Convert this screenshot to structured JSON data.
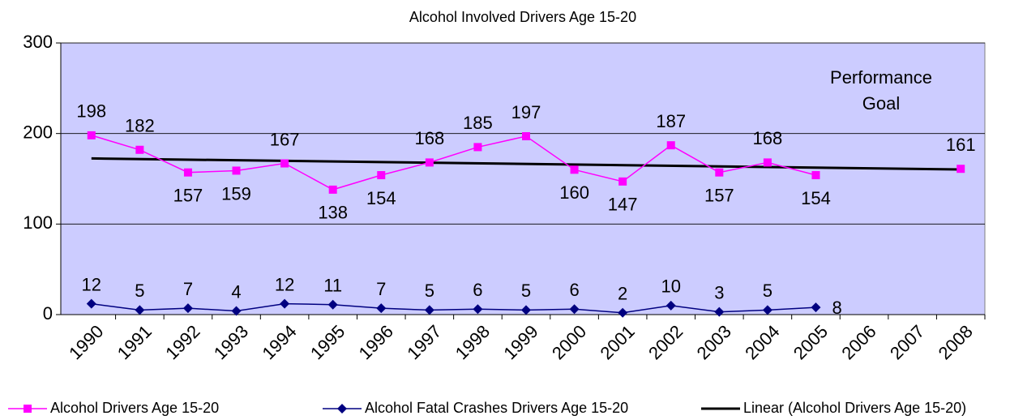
{
  "chart_data": {
    "type": "line",
    "title": "Alcohol Involved Drivers Age 15-20",
    "annotation": [
      "Performance",
      "Goal"
    ],
    "categories": [
      "1990",
      "1991",
      "1992",
      "1993",
      "1994",
      "1995",
      "1996",
      "1997",
      "1998",
      "1999",
      "2000",
      "2001",
      "2002",
      "2003",
      "2004",
      "2005",
      "2006",
      "2007",
      "2008"
    ],
    "series": [
      {
        "name": "Alcohol Drivers Age   15-20",
        "color": "#ff00ff",
        "marker": "square",
        "values": [
          198,
          182,
          157,
          159,
          167,
          138,
          154,
          168,
          185,
          197,
          160,
          147,
          187,
          157,
          168,
          154,
          null,
          null,
          161
        ],
        "trendline": {
          "type": "linear",
          "name": "Linear (Alcohol Drivers Age   15-20)",
          "color": "#000000"
        }
      },
      {
        "name": "Alcohol Fatal Crashes Drivers Age 15-20",
        "color": "#000080",
        "marker": "diamond",
        "values": [
          12,
          5,
          7,
          4,
          12,
          11,
          7,
          5,
          6,
          5,
          6,
          2,
          10,
          3,
          5,
          8,
          null,
          null,
          null
        ]
      }
    ],
    "ylim": [
      0,
      300
    ],
    "yticks": [
      0,
      100,
      200,
      300
    ],
    "grid": true,
    "plot_background": "#ccccff",
    "legend": "bottom"
  }
}
